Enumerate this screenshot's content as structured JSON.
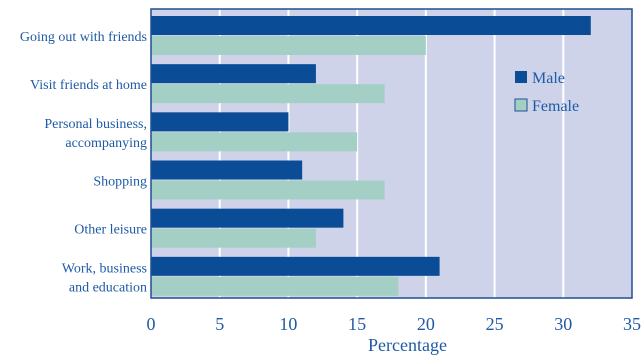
{
  "chart_data": {
    "type": "bar",
    "orientation": "horizontal",
    "categories": [
      [
        "Going out with friends"
      ],
      [
        "Visit friends at home"
      ],
      [
        "Personal business,",
        "accompanying"
      ],
      [
        "Shopping"
      ],
      [
        "Other leisure"
      ],
      [
        "Work, business",
        "and education"
      ]
    ],
    "series": [
      {
        "name": "Male",
        "values": [
          32,
          12,
          10,
          11,
          14,
          21
        ],
        "color": "#0b4c97"
      },
      {
        "name": "Female",
        "values": [
          20,
          17,
          15,
          17,
          12,
          18
        ],
        "color": "#a3cfc4"
      }
    ],
    "xlabel": "Percentage",
    "xlim": [
      0,
      35
    ],
    "xticks": [
      0,
      5,
      10,
      15,
      20,
      25,
      30,
      35
    ],
    "grid": true,
    "legend_position": "top-right",
    "colors": {
      "plot_background": "#cfd3ea",
      "gridline": "#ffffff",
      "text": "#1f5aa6",
      "frame": "#1f4f95"
    }
  }
}
